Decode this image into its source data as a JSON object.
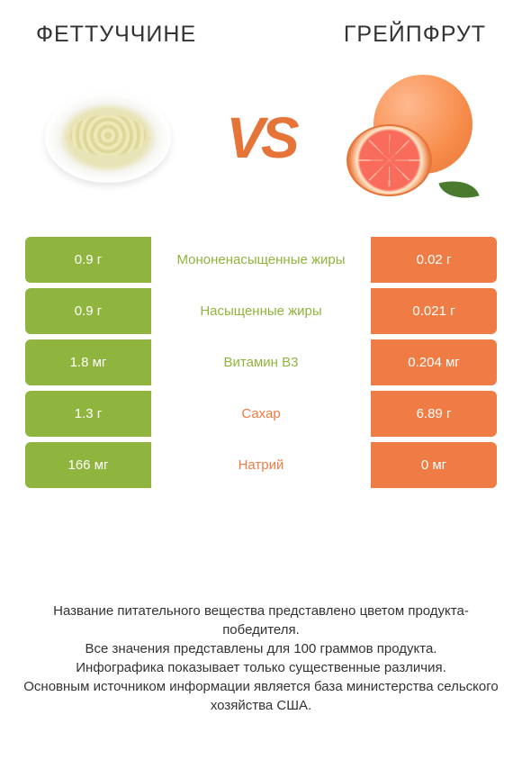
{
  "colors": {
    "left": "#8fb53e",
    "right": "#f07c45",
    "text": "#333333",
    "vs": "#e67337"
  },
  "titles": {
    "left": "ФЕТТУЧЧИНЕ",
    "right": "ГРЕЙПФРУТ",
    "vs": "VS"
  },
  "rows": [
    {
      "label": "Мононенасыщенные жиры",
      "left": "0.9 г",
      "right": "0.02 г",
      "winner": "left"
    },
    {
      "label": "Насыщенные жиры",
      "left": "0.9 г",
      "right": "0.021 г",
      "winner": "left"
    },
    {
      "label": "Витамин B3",
      "left": "1.8 мг",
      "right": "0.204 мг",
      "winner": "left"
    },
    {
      "label": "Сахар",
      "left": "1.3 г",
      "right": "6.89 г",
      "winner": "right"
    },
    {
      "label": "Натрий",
      "left": "166 мг",
      "right": "0 мг",
      "winner": "right"
    }
  ],
  "footer": {
    "l1": "Название питательного вещества представлено цветом продукта-победителя.",
    "l2": "Все значения представлены для 100 граммов продукта.",
    "l3": "Инфографика показывает только существенные различия.",
    "l4": "Основным источником информации является база министерства сельского хозяйства США."
  }
}
